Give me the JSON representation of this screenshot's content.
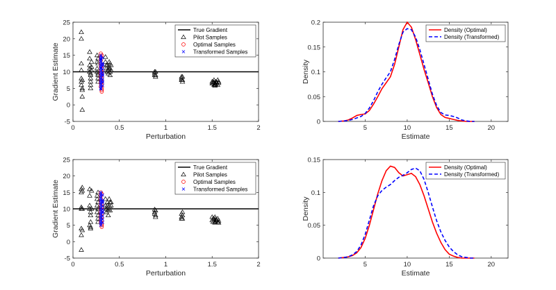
{
  "colors": {
    "pilot": "#000000",
    "optimal": "#ff0000",
    "transformed": "#0000ff",
    "true_gradient": "#000000",
    "density_optimal": "#ff0000",
    "density_transformed": "#0000ff",
    "axes": "#262626"
  },
  "chart_data": [
    {
      "type": "scatter",
      "xlabel": "Perturbation",
      "ylabel": "Gradient Estimate",
      "xlim": [
        0,
        2
      ],
      "ylim": [
        -5,
        25
      ],
      "xticks": [
        0,
        0.5,
        1,
        1.5,
        2
      ],
      "xtick_labels": [
        "0",
        "0.5",
        "1",
        "1.5",
        "2"
      ],
      "yticks": [
        -5,
        0,
        5,
        10,
        15,
        20,
        25
      ],
      "ytick_labels": [
        "-5",
        "0",
        "5",
        "10",
        "15",
        "20",
        "25"
      ],
      "legend": [
        "True Gradient",
        "Pilot Samples",
        "Optimal Samples",
        "Transformed Samples"
      ],
      "legend_position": "top-right",
      "true_gradient": 10,
      "pilot": {
        "x": [
          0.09,
          0.09,
          0.09,
          0.09,
          0.09,
          0.09,
          0.09,
          0.1,
          0.1,
          0.1,
          0.1,
          0.1,
          0.18,
          0.18,
          0.18,
          0.18,
          0.18,
          0.19,
          0.19,
          0.19,
          0.19,
          0.19,
          0.19,
          0.2,
          0.2,
          0.2,
          0.26,
          0.26,
          0.26,
          0.26,
          0.27,
          0.27,
          0.27,
          0.27,
          0.27,
          0.27,
          0.35,
          0.35,
          0.36,
          0.36,
          0.37,
          0.37,
          0.38,
          0.38,
          0.38,
          0.39,
          0.39,
          0.39,
          0.4,
          0.4,
          0.4,
          0.4,
          0.41,
          0.41,
          0.88,
          0.88,
          0.88,
          0.89,
          0.89,
          0.89,
          1.17,
          1.17,
          1.17,
          1.18,
          1.18,
          1.18,
          1.5,
          1.5,
          1.51,
          1.51,
          1.52,
          1.52,
          1.52,
          1.53,
          1.53,
          1.53,
          1.54,
          1.54,
          1.55,
          1.56,
          1.56,
          1.57,
          1.57
        ],
        "y": [
          22,
          20,
          12.5,
          10.5,
          8,
          7,
          6,
          5,
          4.5,
          2.5,
          -1.5,
          7.5,
          16,
          14,
          12,
          11,
          10,
          9.5,
          9,
          8,
          7,
          6,
          5,
          11.5,
          13,
          10.5,
          15,
          13,
          11,
          10,
          9,
          8,
          7,
          12.5,
          14,
          9.5,
          14.5,
          13,
          12,
          11,
          10,
          12,
          11,
          10.5,
          9.5,
          13,
          12,
          11,
          10,
          9,
          12.5,
          11,
          10.5,
          12,
          10,
          9.5,
          9,
          8.5,
          10,
          9,
          8.5,
          8,
          7.5,
          7,
          8.5,
          7.5,
          7,
          6.5,
          7,
          6.5,
          6,
          7.5,
          6.8,
          6.2,
          5.8,
          6.5,
          7,
          6.2,
          6.8,
          6,
          7.5,
          7,
          6.6
        ]
      },
      "optimal": {
        "x": [
          0.3,
          0.3,
          0.3,
          0.3,
          0.3,
          0.3,
          0.3,
          0.3,
          0.3,
          0.3,
          0.3,
          0.31,
          0.31,
          0.31,
          0.31,
          0.31,
          0.31,
          0.31,
          0.31,
          0.31,
          0.31,
          0.31
        ],
        "y": [
          15.5,
          14.5,
          13.5,
          12.5,
          11.5,
          10.5,
          9.5,
          8.5,
          7.5,
          6.5,
          5.5,
          4.5,
          4,
          5,
          6,
          7,
          8,
          9,
          10,
          11,
          12,
          15
        ]
      },
      "transformed": {
        "x": [
          0.3,
          0.3,
          0.3,
          0.3,
          0.3,
          0.3,
          0.3,
          0.3,
          0.3,
          0.3,
          0.3,
          0.3,
          0.3,
          0.3,
          0.3,
          0.3,
          0.3,
          0.3,
          0.3,
          0.3,
          0.3,
          0.3,
          0.3,
          0.3,
          0.32,
          0.32,
          0.32,
          0.32,
          0.32,
          0.32,
          0.32,
          0.32,
          0.32,
          0.32,
          0.32,
          0.32
        ],
        "y": [
          15,
          14.5,
          14,
          13.5,
          13,
          12.5,
          12,
          11.5,
          11,
          10.5,
          10,
          9.5,
          9,
          8.5,
          8,
          7.5,
          7,
          6.5,
          6,
          5.5,
          5,
          4.8,
          13.8,
          11.2,
          14.2,
          12.6,
          11.8,
          10.8,
          9.8,
          8.8,
          7.8,
          6.8,
          5.8,
          12.2,
          9.2,
          7.2
        ]
      }
    },
    {
      "type": "line",
      "xlabel": "Estimate",
      "ylabel": "Density",
      "xlim": [
        0,
        22
      ],
      "ylim": [
        0,
        0.2
      ],
      "xticks": [
        5,
        10,
        15,
        20
      ],
      "xtick_labels": [
        "5",
        "10",
        "15",
        "20"
      ],
      "yticks": [
        0,
        0.05,
        0.1,
        0.15,
        0.2
      ],
      "ytick_labels": [
        "0",
        "0.05",
        "0.1",
        "0.15",
        "0.2"
      ],
      "legend": [
        "Density (Optimal)",
        "Density (Transformed)"
      ],
      "legend_position": "top-right",
      "series": [
        {
          "name": "Density (Optimal)",
          "style": "solid",
          "x": [
            1.8,
            2.5,
            3,
            3.5,
            4,
            4.5,
            5,
            5.5,
            6,
            6.5,
            7,
            7.5,
            8,
            8.5,
            9,
            9.5,
            10,
            10.5,
            11,
            11.5,
            12,
            12.5,
            13,
            13.5,
            14,
            14.5,
            15,
            15.5,
            16,
            16.5,
            17,
            17.5,
            18
          ],
          "y": [
            0,
            0.001,
            0.003,
            0.007,
            0.012,
            0.014,
            0.015,
            0.022,
            0.035,
            0.05,
            0.066,
            0.078,
            0.09,
            0.115,
            0.15,
            0.185,
            0.2,
            0.19,
            0.165,
            0.135,
            0.105,
            0.078,
            0.05,
            0.028,
            0.014,
            0.008,
            0.006,
            0.004,
            0.002,
            0.001,
            0,
            0,
            0
          ]
        },
        {
          "name": "Density (Transformed)",
          "style": "dashed",
          "x": [
            1.8,
            2.5,
            3,
            3.5,
            4,
            4.5,
            5,
            5.5,
            6,
            6.5,
            7,
            7.5,
            8,
            8.5,
            9,
            9.5,
            10,
            10.5,
            11,
            11.5,
            12,
            12.5,
            13,
            13.5,
            14,
            14.5,
            15,
            15.5,
            16,
            16.5,
            17,
            17.5,
            18
          ],
          "y": [
            0,
            0.001,
            0.002,
            0.004,
            0.007,
            0.01,
            0.016,
            0.027,
            0.042,
            0.06,
            0.075,
            0.088,
            0.1,
            0.125,
            0.155,
            0.18,
            0.187,
            0.185,
            0.17,
            0.145,
            0.115,
            0.085,
            0.055,
            0.032,
            0.018,
            0.013,
            0.012,
            0.01,
            0.007,
            0.003,
            0.001,
            0,
            0
          ]
        }
      ]
    },
    {
      "type": "scatter",
      "xlabel": "Perturbation",
      "ylabel": "Gradient Estimate",
      "xlim": [
        0,
        2
      ],
      "ylim": [
        -5,
        25
      ],
      "xticks": [
        0,
        0.5,
        1,
        1.5,
        2
      ],
      "xtick_labels": [
        "0",
        "0.5",
        "1",
        "1.5",
        "2"
      ],
      "yticks": [
        -5,
        0,
        5,
        10,
        15,
        20,
        25
      ],
      "ytick_labels": [
        "-5",
        "0",
        "5",
        "10",
        "15",
        "20",
        "25"
      ],
      "legend": [
        "True Gradient",
        "Pilot Samples",
        "Optimal Samples",
        "Transformed Samples"
      ],
      "legend_position": "top-right",
      "true_gradient": 10,
      "pilot": {
        "x": [
          0.09,
          0.09,
          0.09,
          0.09,
          0.09,
          0.09,
          0.09,
          0.1,
          0.1,
          0.1,
          0.1,
          0.18,
          0.18,
          0.18,
          0.18,
          0.18,
          0.19,
          0.19,
          0.19,
          0.19,
          0.19,
          0.2,
          0.2,
          0.26,
          0.26,
          0.26,
          0.26,
          0.27,
          0.27,
          0.27,
          0.27,
          0.27,
          0.27,
          0.35,
          0.35,
          0.36,
          0.36,
          0.37,
          0.37,
          0.38,
          0.38,
          0.38,
          0.39,
          0.39,
          0.39,
          0.4,
          0.4,
          0.4,
          0.41,
          0.41,
          0.88,
          0.88,
          0.88,
          0.89,
          0.89,
          0.89,
          1.17,
          1.17,
          1.17,
          1.18,
          1.18,
          1.18,
          1.5,
          1.5,
          1.51,
          1.51,
          1.52,
          1.52,
          1.53,
          1.53,
          1.53,
          1.54,
          1.54,
          1.55,
          1.56,
          1.56,
          1.57,
          1.57
        ],
        "y": [
          16,
          15,
          10.5,
          10,
          4,
          2,
          -2.5,
          16.5,
          15.5,
          10,
          3.5,
          16,
          14,
          11,
          10,
          5,
          9,
          8,
          6,
          4.5,
          4,
          15.5,
          10,
          14,
          13,
          11,
          9,
          8,
          7,
          6,
          15,
          12,
          10,
          13,
          11,
          10,
          9,
          12,
          11,
          10.5,
          9.5,
          8,
          13,
          11,
          10,
          12,
          10.5,
          9.5,
          12,
          11,
          9.8,
          9,
          8.5,
          9.5,
          8,
          7.5,
          8.5,
          7.5,
          7,
          9,
          8,
          7,
          7.5,
          6.5,
          7,
          6,
          7,
          6.5,
          6.2,
          5.8,
          7.5,
          7,
          6.5,
          6.6,
          6,
          7,
          6.4,
          5.8
        ]
      },
      "optimal": {
        "x": [
          0.3,
          0.3,
          0.3,
          0.3,
          0.3,
          0.3,
          0.3,
          0.3,
          0.3,
          0.3,
          0.31,
          0.31,
          0.31,
          0.31,
          0.31,
          0.31,
          0.31,
          0.31,
          0.31,
          0.31
        ],
        "y": [
          15,
          14,
          13,
          12,
          11,
          10,
          9,
          8,
          7,
          6,
          5,
          4.5,
          5.5,
          6.5,
          7.5,
          8.5,
          9.5,
          10.5,
          11.5,
          14.5
        ]
      },
      "transformed": {
        "x": [
          0.3,
          0.3,
          0.3,
          0.3,
          0.3,
          0.3,
          0.3,
          0.3,
          0.3,
          0.3,
          0.3,
          0.3,
          0.3,
          0.3,
          0.3,
          0.3,
          0.3,
          0.3,
          0.3,
          0.3,
          0.3,
          0.32,
          0.32,
          0.32,
          0.32,
          0.32,
          0.32,
          0.32,
          0.32,
          0.32,
          0.32,
          0.32
        ],
        "y": [
          15,
          14.5,
          14,
          13.5,
          13,
          12.5,
          12,
          11.5,
          11,
          10.5,
          10,
          9.5,
          9,
          8.5,
          8,
          7.5,
          7,
          6.5,
          6,
          5.5,
          5,
          14.2,
          12.6,
          11.8,
          10.8,
          9.8,
          8.8,
          7.8,
          6.8,
          5.8,
          12.2,
          9.2
        ]
      }
    },
    {
      "type": "line",
      "xlabel": "Estimate",
      "ylabel": "Density",
      "xlim": [
        0,
        22
      ],
      "ylim": [
        0,
        0.15
      ],
      "xticks": [
        5,
        10,
        15,
        20
      ],
      "xtick_labels": [
        "5",
        "10",
        "15",
        "20"
      ],
      "yticks": [
        0,
        0.05,
        0.1,
        0.15
      ],
      "ytick_labels": [
        "0",
        "0.05",
        "0.1",
        "0.15"
      ],
      "legend": [
        "Density (Optimal)",
        "Density (Transformed)"
      ],
      "legend_position": "top-right",
      "series": [
        {
          "name": "Density (Optimal)",
          "style": "solid",
          "x": [
            1.8,
            2.5,
            3,
            3.5,
            4,
            4.5,
            5,
            5.5,
            6,
            6.5,
            7,
            7.5,
            8,
            8.5,
            9,
            9.5,
            10,
            10.5,
            11,
            11.5,
            12,
            12.5,
            13,
            13.5,
            14,
            14.5,
            15,
            15.5,
            16,
            16.5,
            17,
            17.5,
            18
          ],
          "y": [
            0,
            0.001,
            0.002,
            0.004,
            0.008,
            0.016,
            0.03,
            0.05,
            0.074,
            0.098,
            0.118,
            0.133,
            0.14,
            0.138,
            0.13,
            0.125,
            0.127,
            0.129,
            0.124,
            0.112,
            0.095,
            0.075,
            0.055,
            0.038,
            0.024,
            0.013,
            0.006,
            0.003,
            0.001,
            0,
            0,
            0,
            0
          ]
        },
        {
          "name": "Density (Transformed)",
          "style": "dashed",
          "x": [
            1.8,
            2.5,
            3,
            3.5,
            4,
            4.5,
            5,
            5.5,
            6,
            6.5,
            7,
            7.5,
            8,
            8.5,
            9,
            9.5,
            10,
            10.5,
            11,
            11.5,
            12,
            12.5,
            13,
            13.5,
            14,
            14.5,
            15,
            15.5,
            16,
            16.5,
            17,
            17.5,
            18
          ],
          "y": [
            0,
            0.001,
            0.002,
            0.005,
            0.01,
            0.02,
            0.036,
            0.058,
            0.08,
            0.095,
            0.103,
            0.108,
            0.112,
            0.118,
            0.123,
            0.126,
            0.13,
            0.135,
            0.137,
            0.133,
            0.12,
            0.1,
            0.078,
            0.057,
            0.04,
            0.027,
            0.017,
            0.01,
            0.005,
            0.002,
            0.001,
            0,
            0
          ]
        }
      ]
    }
  ]
}
